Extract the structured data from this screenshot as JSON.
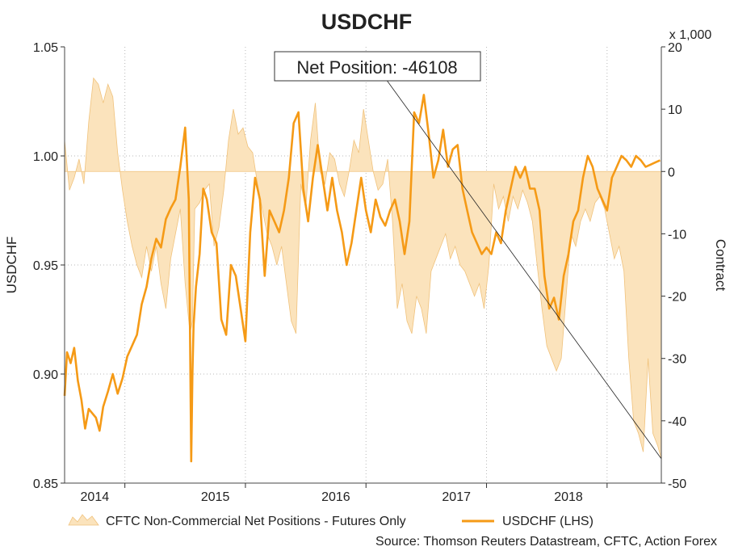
{
  "colors": {
    "usdchf_line": "#f59a16",
    "cftc_fill": "#fbe3bc",
    "cftc_stroke": "#f0c27c",
    "gridline": "#b8b8b8",
    "annotation_line": "#222222",
    "axis": "#333333"
  },
  "chart_data": {
    "type": "line",
    "title": "USDCHF",
    "source": "Source: Thomson Reuters Datastream, CFTC, Action Forex",
    "annotation": "Net Position: -46108",
    "left_axis": {
      "label": "USDCHF",
      "range": [
        0.85,
        1.05
      ],
      "ticks": [
        "0.85",
        "0.90",
        "0.95",
        "1.00",
        "1.05"
      ]
    },
    "right_axis": {
      "label": "Contract",
      "multiplier": "x 1,000",
      "range": [
        -50,
        20
      ],
      "ticks": [
        "-50",
        "-40",
        "-30",
        "-20",
        "-10",
        "0",
        "10",
        "20"
      ]
    },
    "x_axis": {
      "range": [
        2013.5,
        2018.45
      ],
      "tick_labels": [
        "2014",
        "2015",
        "2016",
        "2017",
        "2018"
      ],
      "label_positions": [
        2013.75,
        2014.75,
        2015.75,
        2016.75,
        2017.68
      ],
      "gridlines": [
        2014.0,
        2015.0,
        2016.0,
        2017.0,
        2018.0
      ]
    },
    "grid": true,
    "legend": {
      "placement": "bottom",
      "entries": [
        "CFTC Non-Commercial Net Positions - Futures Only",
        "USDCHF (LHS)"
      ]
    },
    "series": [
      {
        "name": "USDCHF (LHS)",
        "axis": "left",
        "x": [
          2013.5,
          2013.52,
          2013.55,
          2013.58,
          2013.61,
          2013.64,
          2013.67,
          2013.7,
          2013.73,
          2013.76,
          2013.79,
          2013.82,
          2013.86,
          2013.9,
          2013.94,
          2013.98,
          2014.02,
          2014.06,
          2014.1,
          2014.14,
          2014.18,
          2014.22,
          2014.26,
          2014.3,
          2014.34,
          2014.38,
          2014.42,
          2014.46,
          2014.5,
          2014.53,
          2014.55,
          2014.56,
          2014.57,
          2014.59,
          2014.62,
          2014.65,
          2014.68,
          2014.72,
          2014.76,
          2014.8,
          2014.84,
          2014.88,
          2014.92,
          2014.96,
          2015.0,
          2015.04,
          2015.08,
          2015.12,
          2015.16,
          2015.2,
          2015.24,
          2015.28,
          2015.32,
          2015.36,
          2015.4,
          2015.44,
          2015.48,
          2015.52,
          2015.56,
          2015.6,
          2015.64,
          2015.68,
          2015.72,
          2015.76,
          2015.8,
          2015.84,
          2015.88,
          2015.92,
          2015.96,
          2016.0,
          2016.04,
          2016.08,
          2016.12,
          2016.16,
          2016.2,
          2016.24,
          2016.28,
          2016.32,
          2016.36,
          2016.4,
          2016.44,
          2016.48,
          2016.52,
          2016.56,
          2016.6,
          2016.64,
          2016.68,
          2016.72,
          2016.76,
          2016.8,
          2016.84,
          2016.88,
          2016.92,
          2016.96,
          2017.0,
          2017.04,
          2017.08,
          2017.12,
          2017.16,
          2017.2,
          2017.24,
          2017.28,
          2017.32,
          2017.36,
          2017.4,
          2017.44,
          2017.48,
          2017.52,
          2017.56,
          2017.6,
          2017.64,
          2017.68,
          2017.72,
          2017.76,
          2017.8,
          2017.84,
          2017.88,
          2017.92,
          2017.96,
          2018.0,
          2018.04,
          2018.08,
          2018.12,
          2018.16,
          2018.2,
          2018.24,
          2018.28,
          2018.32,
          2018.36,
          2018.4,
          2018.44
        ],
        "values": [
          0.89,
          0.91,
          0.905,
          0.912,
          0.897,
          0.888,
          0.875,
          0.884,
          0.882,
          0.88,
          0.874,
          0.885,
          0.892,
          0.9,
          0.891,
          0.898,
          0.908,
          0.913,
          0.918,
          0.932,
          0.94,
          0.953,
          0.962,
          0.958,
          0.971,
          0.976,
          0.98,
          0.995,
          1.013,
          0.98,
          0.86,
          0.9,
          0.922,
          0.94,
          0.955,
          0.985,
          0.98,
          0.965,
          0.96,
          0.925,
          0.918,
          0.95,
          0.945,
          0.93,
          0.915,
          0.965,
          0.99,
          0.98,
          0.945,
          0.975,
          0.97,
          0.965,
          0.975,
          0.99,
          1.015,
          1.02,
          0.985,
          0.97,
          0.99,
          1.005,
          0.99,
          0.975,
          0.99,
          0.975,
          0.965,
          0.95,
          0.96,
          0.975,
          0.99,
          0.975,
          0.965,
          0.98,
          0.972,
          0.968,
          0.975,
          0.98,
          0.97,
          0.955,
          0.97,
          1.02,
          1.015,
          1.028,
          1.01,
          0.99,
          0.998,
          1.012,
          0.995,
          1.003,
          1.005,
          0.985,
          0.975,
          0.965,
          0.96,
          0.955,
          0.958,
          0.955,
          0.965,
          0.96,
          0.975,
          0.985,
          0.995,
          0.99,
          0.995,
          0.985,
          0.985,
          0.975,
          0.945,
          0.93,
          0.935,
          0.925,
          0.945,
          0.955,
          0.97,
          0.975,
          0.99,
          1.0,
          0.995,
          0.985,
          0.98,
          0.975,
          0.99,
          0.995,
          1.0,
          0.998,
          0.995,
          1.0,
          0.998,
          0.995,
          0.996,
          0.997,
          0.998
        ]
      },
      {
        "name": "CFTC Non-Commercial Net Positions - Futures Only",
        "axis": "right",
        "x": [
          2013.5,
          2013.54,
          2013.58,
          2013.62,
          2013.66,
          2013.7,
          2013.74,
          2013.78,
          2013.82,
          2013.86,
          2013.9,
          2013.94,
          2013.98,
          2014.02,
          2014.06,
          2014.1,
          2014.14,
          2014.18,
          2014.22,
          2014.26,
          2014.3,
          2014.34,
          2014.38,
          2014.42,
          2014.46,
          2014.5,
          2014.54,
          2014.56,
          2014.58,
          2014.62,
          2014.66,
          2014.7,
          2014.74,
          2014.78,
          2014.82,
          2014.86,
          2014.9,
          2014.94,
          2014.98,
          2015.02,
          2015.06,
          2015.1,
          2015.14,
          2015.18,
          2015.22,
          2015.26,
          2015.3,
          2015.34,
          2015.38,
          2015.42,
          2015.46,
          2015.5,
          2015.54,
          2015.58,
          2015.62,
          2015.66,
          2015.7,
          2015.74,
          2015.78,
          2015.82,
          2015.86,
          2015.9,
          2015.94,
          2015.98,
          2016.02,
          2016.06,
          2016.1,
          2016.14,
          2016.18,
          2016.22,
          2016.26,
          2016.3,
          2016.34,
          2016.38,
          2016.42,
          2016.46,
          2016.5,
          2016.54,
          2016.58,
          2016.62,
          2016.66,
          2016.7,
          2016.74,
          2016.78,
          2016.82,
          2016.86,
          2016.9,
          2016.94,
          2016.98,
          2017.02,
          2017.06,
          2017.1,
          2017.14,
          2017.18,
          2017.22,
          2017.26,
          2017.3,
          2017.34,
          2017.38,
          2017.42,
          2017.46,
          2017.5,
          2017.54,
          2017.58,
          2017.62,
          2017.66,
          2017.7,
          2017.74,
          2017.78,
          2017.82,
          2017.86,
          2017.9,
          2017.94,
          2017.98,
          2018.02,
          2018.06,
          2018.1,
          2018.14,
          2018.18,
          2018.22,
          2018.26,
          2018.3,
          2018.34,
          2018.38,
          2018.42,
          2018.45
        ],
        "values": [
          5,
          -3,
          -1,
          2,
          -2,
          8,
          15,
          14,
          11,
          14,
          12,
          3,
          -3,
          -8,
          -12,
          -15,
          -17,
          -12,
          -16,
          -12,
          -18,
          -22,
          -14,
          -10,
          -6,
          -18,
          -26,
          -24,
          -6,
          -5,
          -3,
          -2,
          -12,
          -9,
          -3,
          5,
          10,
          6,
          7,
          4,
          3,
          -2,
          -6,
          -10,
          -12,
          -15,
          -12,
          -18,
          -24,
          -26,
          -2,
          -6,
          5,
          11,
          0,
          -2,
          3,
          2,
          -2,
          -4,
          0,
          5,
          3,
          10,
          5,
          0,
          -3,
          -2,
          2,
          -8,
          -22,
          -18,
          -24,
          -26,
          -20,
          -22,
          -26,
          -16,
          -14,
          -12,
          -10,
          -14,
          -12,
          -15,
          -16,
          -18,
          -20,
          -18,
          -22,
          -15,
          -2,
          -6,
          -4,
          -8,
          -4,
          -6,
          -3,
          -5,
          -8,
          -15,
          -22,
          -28,
          -30,
          -32,
          -30,
          -20,
          -10,
          -12,
          -8,
          -6,
          -8,
          -5,
          -4,
          -6,
          -10,
          -14,
          -12,
          -16,
          -30,
          -40,
          -42,
          -45,
          -30,
          -42,
          -44,
          -46.1
        ]
      }
    ]
  }
}
